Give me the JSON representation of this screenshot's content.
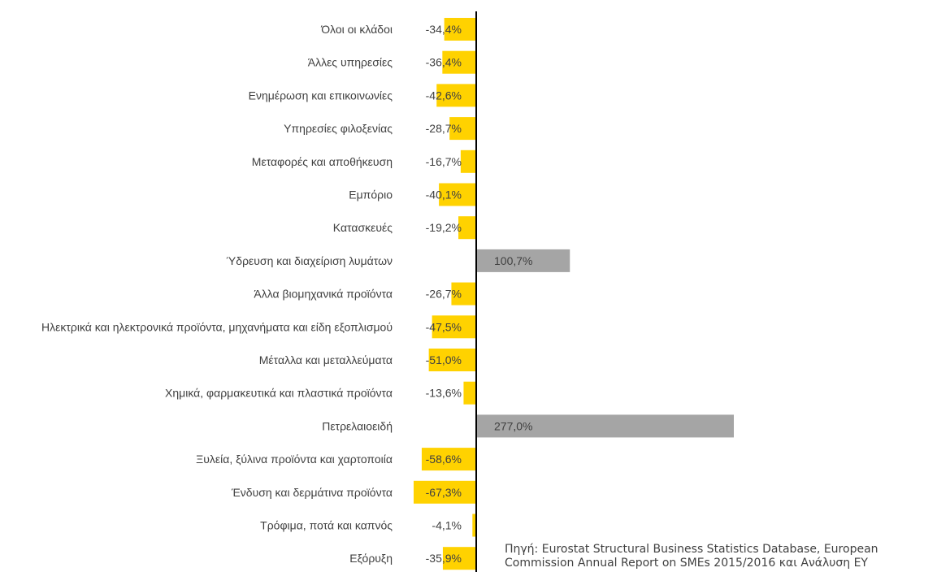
{
  "chart_data": {
    "type": "bar",
    "orientation": "horizontal",
    "categories": [
      "Όλοι οι κλάδοι",
      "Άλλες υπηρεσίες",
      "Ενημέρωση και επικοινωνίες",
      "Υπηρεσίες φιλοξενίας",
      "Μεταφορές και αποθήκευση",
      "Εμπόριο",
      "Κατασκευές",
      "Ύδρευση και διαχείριση λυμάτων",
      "Άλλα βιομηχανικά προϊόντα",
      "Ηλεκτρικά και ηλεκτρονικά προϊόντα, μηχανήματα και είδη εξοπλισμού",
      "Μέταλλα και μεταλλεύματα",
      "Χημικά, φαρμακευτικά και πλαστικά προϊόντα",
      "Πετρελαιοειδή",
      "Ξυλεία, ξύλινα προϊόντα και χαρτοποιία",
      "Ένδυση και δερμάτινα προϊόντα",
      "Τρόφιμα, ποτά και καπνός",
      "Εξόρυξη"
    ],
    "values": [
      -34.4,
      -36.4,
      -42.6,
      -28.7,
      -16.7,
      -40.1,
      -19.2,
      100.7,
      -26.7,
      -47.5,
      -51.0,
      -13.6,
      277.0,
      -58.6,
      -67.3,
      -4.1,
      -35.9
    ],
    "value_labels": [
      "-34,4%",
      "-36,4%",
      "-42,6%",
      "-28,7%",
      "-16,7%",
      "-40,1%",
      "-19,2%",
      "100,7%",
      "-26,7%",
      "-47,5%",
      "-51,0%",
      "-13,6%",
      "277,0%",
      "-58,6%",
      "-67,3%",
      "-4,1%",
      "-35,9%"
    ],
    "colors": {
      "negative": "#FFD200",
      "positive": "#A5A5A5",
      "axis": "#000000"
    },
    "grid": false,
    "legend": "none"
  },
  "source_note": {
    "line1": "Πηγή: Eurostat Structural Business Statistics Database, European",
    "line2": "Commission Annual Report on SMEs 2015/2016 και Ανάλυση EY"
  }
}
